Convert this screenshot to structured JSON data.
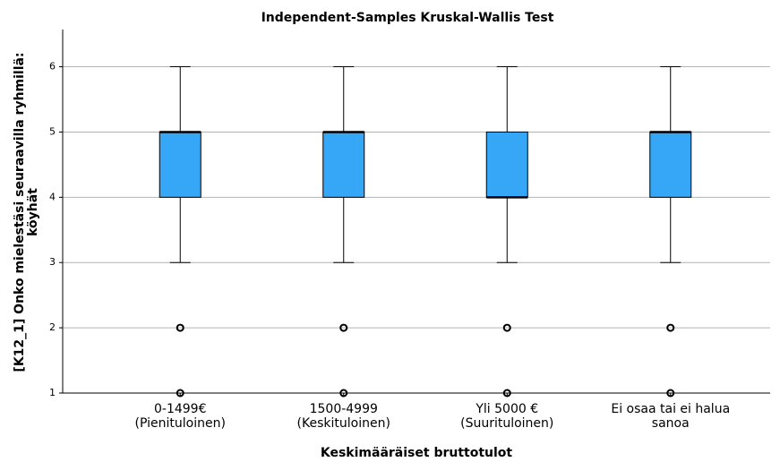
{
  "chart_data": {
    "type": "box",
    "title": "Independent-Samples Kruskal-Wallis Test",
    "x_label": "Keskimääräiset bruttotulot",
    "y_label": [
      "[K12_1] Onko mielestäsi seuraavilla ryhmillä:",
      "köyhät"
    ],
    "categories": [
      [
        "0-1499€",
        "(Pienituloinen)"
      ],
      [
        "1500-4999",
        "(Keskituloinen)"
      ],
      [
        "Yli 5000 €",
        "(Suurituloinen)"
      ],
      [
        "Ei osaa tai ei halua",
        "sanoa"
      ]
    ],
    "boxes": [
      {
        "whislo": 3,
        "q1": 4,
        "med": 5,
        "q3": 5,
        "whishi": 6,
        "fliers": [
          2,
          1
        ]
      },
      {
        "whislo": 3,
        "q1": 4,
        "med": 5,
        "q3": 5,
        "whishi": 6,
        "fliers": [
          2,
          1
        ]
      },
      {
        "whislo": 3,
        "q1": 4,
        "med": 4,
        "q3": 5,
        "whishi": 6,
        "fliers": [
          2,
          1
        ]
      },
      {
        "whislo": 3,
        "q1": 4,
        "med": 5,
        "q3": 5,
        "whishi": 6,
        "fliers": [
          2,
          1
        ]
      }
    ],
    "color": "#35a7f6",
    "ylim": [
      1,
      6.57
    ],
    "yticks": [
      1,
      2,
      3,
      4,
      5,
      6
    ],
    "grid": true
  }
}
